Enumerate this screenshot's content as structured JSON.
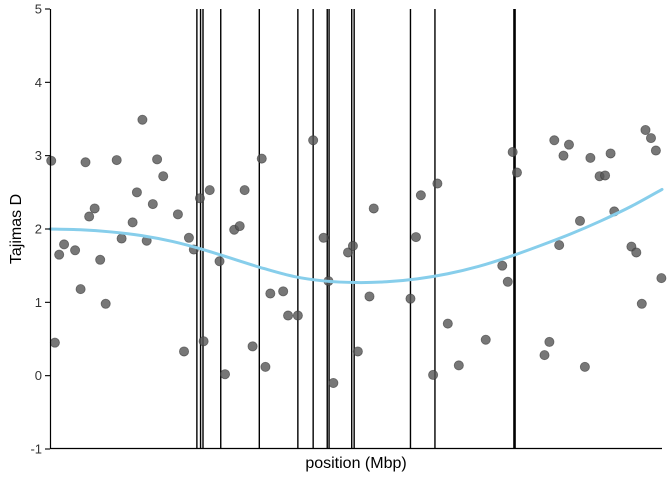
{
  "chart_data": {
    "type": "scatter",
    "title": "",
    "xlabel": "position (Mbp)",
    "ylabel": "Tajimas D",
    "xlim": [
      0,
      100
    ],
    "ylim": [
      -1,
      5
    ],
    "y_ticks": [
      "-1",
      "0",
      "1",
      "2",
      "3",
      "4",
      "5"
    ],
    "x_ticks_shown": false,
    "grid": false,
    "legend": "none",
    "colors": {
      "points": "#555555",
      "trend": "#87CEEB",
      "vlines": "#000000",
      "axis": "#000000"
    },
    "points": [
      {
        "x": 0.2,
        "y": 2.93
      },
      {
        "x": 0.8,
        "y": 0.45
      },
      {
        "x": 1.5,
        "y": 1.65
      },
      {
        "x": 2.3,
        "y": 1.79
      },
      {
        "x": 4.1,
        "y": 1.71
      },
      {
        "x": 5.0,
        "y": 1.18
      },
      {
        "x": 5.8,
        "y": 2.91
      },
      {
        "x": 6.4,
        "y": 2.17
      },
      {
        "x": 7.3,
        "y": 2.28
      },
      {
        "x": 8.2,
        "y": 1.58
      },
      {
        "x": 9.1,
        "y": 0.98
      },
      {
        "x": 10.9,
        "y": 2.94
      },
      {
        "x": 11.7,
        "y": 1.87
      },
      {
        "x": 13.5,
        "y": 2.09
      },
      {
        "x": 14.2,
        "y": 2.5
      },
      {
        "x": 15.1,
        "y": 3.49
      },
      {
        "x": 15.8,
        "y": 1.84
      },
      {
        "x": 16.8,
        "y": 2.34
      },
      {
        "x": 17.5,
        "y": 2.95
      },
      {
        "x": 18.5,
        "y": 2.72
      },
      {
        "x": 20.9,
        "y": 2.2
      },
      {
        "x": 21.9,
        "y": 0.33
      },
      {
        "x": 22.7,
        "y": 1.88
      },
      {
        "x": 23.5,
        "y": 1.72
      },
      {
        "x": 24.5,
        "y": 2.42
      },
      {
        "x": 25.1,
        "y": 0.47
      },
      {
        "x": 26.1,
        "y": 2.53
      },
      {
        "x": 27.7,
        "y": 1.56
      },
      {
        "x": 28.6,
        "y": 0.02
      },
      {
        "x": 30.1,
        "y": 1.99
      },
      {
        "x": 31.0,
        "y": 2.04
      },
      {
        "x": 31.8,
        "y": 2.53
      },
      {
        "x": 33.1,
        "y": 0.4
      },
      {
        "x": 34.6,
        "y": 2.96
      },
      {
        "x": 35.2,
        "y": 0.12
      },
      {
        "x": 36.0,
        "y": 1.12
      },
      {
        "x": 38.1,
        "y": 1.15
      },
      {
        "x": 38.9,
        "y": 0.82
      },
      {
        "x": 40.5,
        "y": 0.82
      },
      {
        "x": 43.0,
        "y": 3.21
      },
      {
        "x": 44.7,
        "y": 1.88
      },
      {
        "x": 45.5,
        "y": 1.29
      },
      {
        "x": 46.3,
        "y": -0.1
      },
      {
        "x": 48.7,
        "y": 1.68
      },
      {
        "x": 49.5,
        "y": 1.77
      },
      {
        "x": 50.3,
        "y": 0.33
      },
      {
        "x": 52.2,
        "y": 1.08
      },
      {
        "x": 52.9,
        "y": 2.28
      },
      {
        "x": 58.9,
        "y": 1.05
      },
      {
        "x": 59.8,
        "y": 1.89
      },
      {
        "x": 60.6,
        "y": 2.46
      },
      {
        "x": 62.6,
        "y": 0.01
      },
      {
        "x": 63.3,
        "y": 2.62
      },
      {
        "x": 65.0,
        "y": 0.71
      },
      {
        "x": 66.8,
        "y": 0.14
      },
      {
        "x": 71.2,
        "y": 0.49
      },
      {
        "x": 73.9,
        "y": 1.5
      },
      {
        "x": 74.8,
        "y": 1.28
      },
      {
        "x": 75.6,
        "y": 3.05
      },
      {
        "x": 76.3,
        "y": 2.77
      },
      {
        "x": 80.8,
        "y": 0.28
      },
      {
        "x": 81.6,
        "y": 0.46
      },
      {
        "x": 82.4,
        "y": 3.21
      },
      {
        "x": 83.2,
        "y": 1.78
      },
      {
        "x": 83.9,
        "y": 3.0
      },
      {
        "x": 84.8,
        "y": 3.15
      },
      {
        "x": 86.6,
        "y": 2.11
      },
      {
        "x": 87.4,
        "y": 0.12
      },
      {
        "x": 88.3,
        "y": 2.97
      },
      {
        "x": 89.8,
        "y": 2.72
      },
      {
        "x": 90.7,
        "y": 2.73
      },
      {
        "x": 91.6,
        "y": 3.03
      },
      {
        "x": 92.2,
        "y": 2.24
      },
      {
        "x": 95.0,
        "y": 1.76
      },
      {
        "x": 95.8,
        "y": 1.68
      },
      {
        "x": 96.7,
        "y": 0.98
      },
      {
        "x": 97.3,
        "y": 3.35
      },
      {
        "x": 98.2,
        "y": 3.24
      },
      {
        "x": 99.0,
        "y": 3.07
      },
      {
        "x": 99.9,
        "y": 1.33
      }
    ],
    "vlines": [
      24.0,
      24.6,
      25.0,
      27.9,
      34.2,
      40.5,
      43.0,
      45.3,
      45.6,
      49.3,
      49.7,
      58.9,
      62.9,
      75.8,
      76.0
    ],
    "trend": {
      "x": [
        0,
        5,
        10,
        15,
        20,
        25,
        30,
        35,
        40,
        45,
        50,
        55,
        60,
        65,
        70,
        75,
        80,
        85,
        90,
        95,
        100
      ],
      "y": [
        2.0,
        1.99,
        1.96,
        1.91,
        1.83,
        1.72,
        1.59,
        1.46,
        1.35,
        1.29,
        1.27,
        1.28,
        1.32,
        1.39,
        1.49,
        1.62,
        1.77,
        1.93,
        2.11,
        2.31,
        2.54
      ]
    }
  }
}
